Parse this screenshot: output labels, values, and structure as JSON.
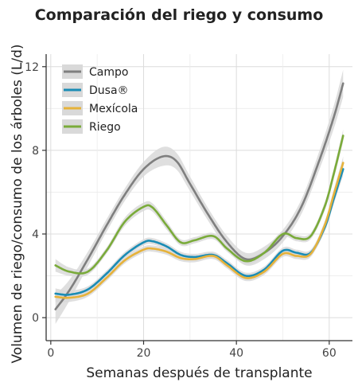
{
  "chart_data": {
    "type": "line",
    "title": "Comparación del riego y consumo",
    "xlabel": "Semanas después de transplante",
    "ylabel": "Volumen de riego/consumo de los árboles (L/d)",
    "xlim": [
      -1,
      65
    ],
    "ylim": [
      -1.1,
      12.6
    ],
    "xticks": [
      0,
      20,
      40,
      60
    ],
    "yticks": [
      0,
      4,
      8,
      12
    ],
    "grid": true,
    "legend": "top-left",
    "confidence_band_color": "#d9d9d9",
    "series": [
      {
        "name": "Campo",
        "color": "#7f7f7f",
        "x": [
          1,
          4,
          8,
          12,
          16,
          20,
          24,
          27,
          30,
          34,
          38,
          42,
          46,
          50,
          54,
          58,
          61,
          63
        ],
        "y": [
          0.4,
          1.3,
          2.8,
          4.4,
          5.9,
          7.1,
          7.7,
          7.5,
          6.4,
          4.9,
          3.6,
          2.8,
          3.1,
          3.9,
          5.3,
          7.6,
          9.6,
          11.2
        ],
        "band": [
          0.7,
          0.5,
          0.35,
          0.3,
          0.3,
          0.35,
          0.45,
          0.4,
          0.35,
          0.3,
          0.3,
          0.3,
          0.3,
          0.3,
          0.35,
          0.45,
          0.55,
          0.65
        ]
      },
      {
        "name": "Dusa®",
        "color": "#1a8cb5",
        "x": [
          1,
          4,
          8,
          12,
          16,
          20,
          22,
          25,
          28,
          31,
          35,
          38,
          42,
          46,
          50,
          53,
          56,
          59,
          61,
          63
        ],
        "y": [
          1.15,
          1.1,
          1.35,
          2.1,
          3.0,
          3.6,
          3.65,
          3.4,
          3.0,
          2.9,
          3.0,
          2.6,
          2.0,
          2.3,
          3.2,
          3.1,
          3.1,
          4.3,
          5.7,
          7.1
        ],
        "band": [
          0.25,
          0.2,
          0.15,
          0.15,
          0.15,
          0.15,
          0.15,
          0.15,
          0.15,
          0.15,
          0.15,
          0.15,
          0.15,
          0.15,
          0.15,
          0.15,
          0.15,
          0.2,
          0.25,
          0.3
        ]
      },
      {
        "name": "Mexícola",
        "color": "#e6b23a",
        "x": [
          1,
          4,
          8,
          12,
          16,
          20,
          22,
          25,
          28,
          31,
          35,
          38,
          42,
          46,
          50,
          53,
          56,
          59,
          61,
          63
        ],
        "y": [
          1.0,
          0.95,
          1.15,
          1.9,
          2.75,
          3.25,
          3.3,
          3.15,
          2.85,
          2.8,
          2.95,
          2.5,
          1.9,
          2.2,
          3.05,
          2.95,
          3.05,
          4.4,
          5.9,
          7.4
        ],
        "band": [
          0.25,
          0.2,
          0.15,
          0.15,
          0.15,
          0.15,
          0.15,
          0.15,
          0.15,
          0.15,
          0.15,
          0.15,
          0.15,
          0.15,
          0.15,
          0.15,
          0.15,
          0.2,
          0.25,
          0.3
        ]
      },
      {
        "name": "Riego",
        "color": "#7aab3a",
        "x": [
          1,
          4,
          8,
          12,
          16,
          20,
          22,
          25,
          28,
          31,
          35,
          38,
          42,
          46,
          50,
          53,
          56,
          59,
          61,
          63
        ],
        "y": [
          2.5,
          2.2,
          2.2,
          3.2,
          4.6,
          5.3,
          5.25,
          4.4,
          3.6,
          3.7,
          3.9,
          3.3,
          2.7,
          3.1,
          4.0,
          3.8,
          3.9,
          5.3,
          6.9,
          8.7
        ],
        "band": [
          0.3,
          0.2,
          0.15,
          0.15,
          0.2,
          0.2,
          0.2,
          0.2,
          0.15,
          0.15,
          0.15,
          0.15,
          0.15,
          0.15,
          0.15,
          0.15,
          0.15,
          0.2,
          0.25,
          0.3
        ]
      }
    ]
  }
}
